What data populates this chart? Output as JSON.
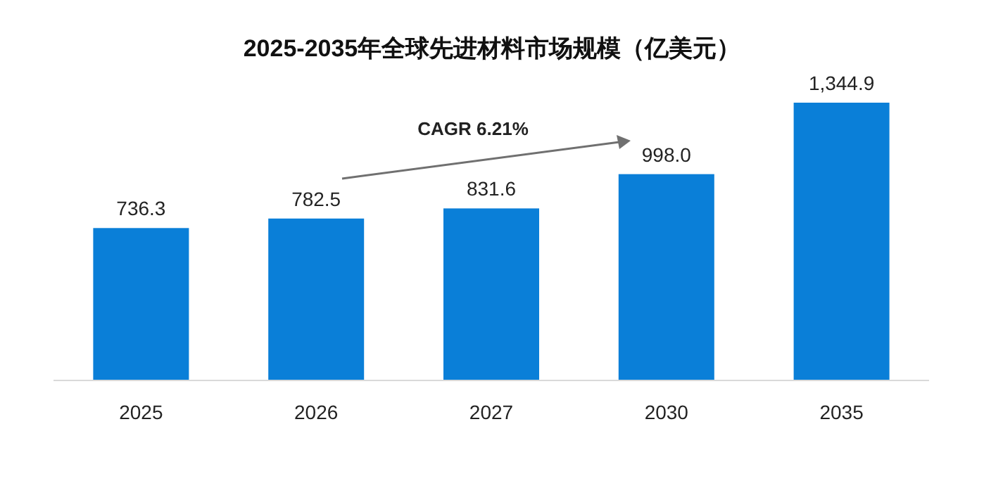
{
  "chart_data": {
    "type": "bar",
    "title": "2025-2035年全球先进材料市场规模（亿美元）",
    "categories": [
      "2025",
      "2026",
      "2027",
      "2030",
      "2035"
    ],
    "values": [
      736.3,
      782.5,
      831.6,
      998.0,
      1344.9
    ],
    "value_labels": [
      "736.3",
      "782.5",
      "831.6",
      "998.0",
      "1,344.9"
    ],
    "color": "#0a7fd8",
    "annotations": [
      "CAGR 6.21%"
    ]
  }
}
